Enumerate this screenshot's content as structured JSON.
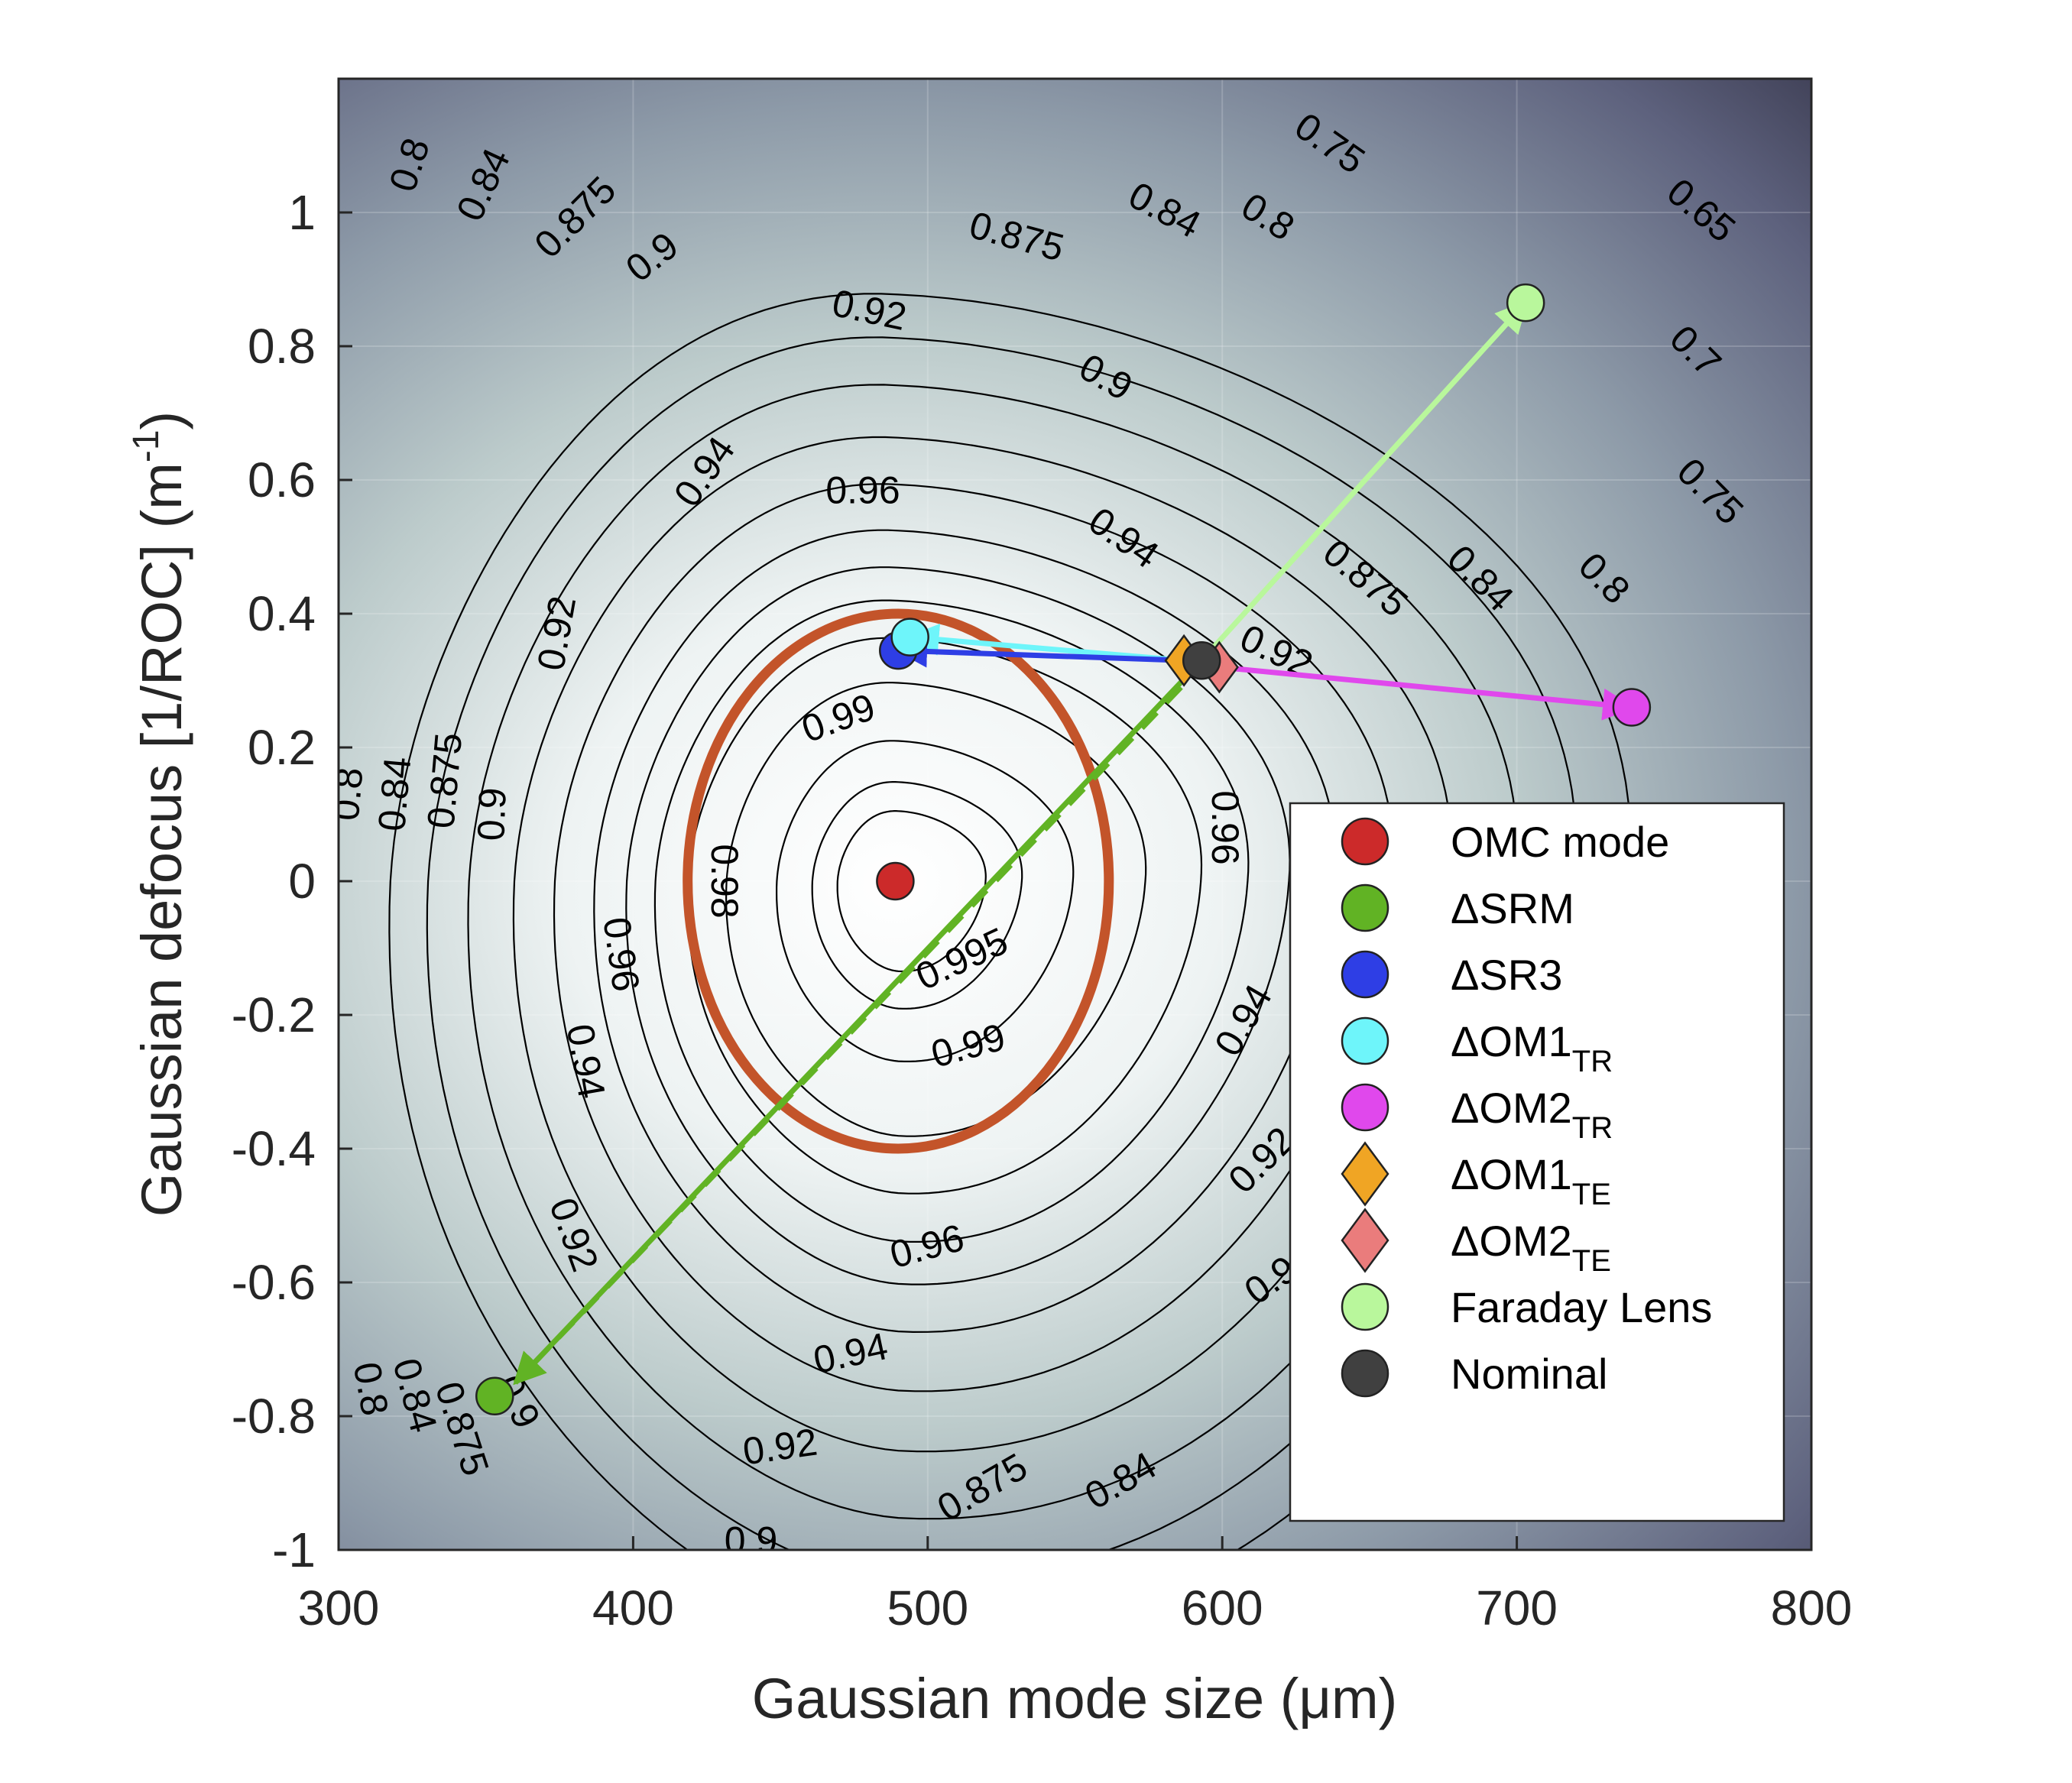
{
  "chart_data": {
    "type": "contour",
    "xlabel": "Gaussian mode size (μm)",
    "ylabel_main": "Gaussian defocus [1/ROC] (m",
    "ylabel_sup": "-1",
    "ylabel_tail": ")",
    "xlim": [
      300,
      800
    ],
    "ylim": [
      -1,
      1.2
    ],
    "xticks": [
      "300",
      "400",
      "500",
      "600",
      "700",
      "800"
    ],
    "xtick_values": [
      300,
      400,
      500,
      600,
      700,
      800
    ],
    "yticks": [
      "1",
      "0.8",
      "0.6",
      "0.4",
      "0.2",
      "0",
      "-0.2",
      "-0.4",
      "-0.6",
      "-0.8",
      "-1"
    ],
    "ytick_values": [
      1,
      0.8,
      0.6,
      0.4,
      0.2,
      0,
      -0.2,
      -0.4,
      -0.6,
      -0.8,
      -1
    ],
    "grid": true,
    "contour_center": [
      490,
      0
    ],
    "contour_levels": [
      0.65,
      0.7,
      0.75,
      0.8,
      0.84,
      0.875,
      0.9,
      0.92,
      0.94,
      0.96,
      0.98,
      0.99,
      0.995
    ],
    "contour_labels": [
      {
        "text": "0.8",
        "x": 325,
        "y": 1.07,
        "rot": -72
      },
      {
        "text": "0.84",
        "x": 350,
        "y": 1.04,
        "rot": -65
      },
      {
        "text": "0.875",
        "x": 381,
        "y": 0.99,
        "rot": -45
      },
      {
        "text": "0.9",
        "x": 407,
        "y": 0.93,
        "rot": -38
      },
      {
        "text": "0.92",
        "x": 480,
        "y": 0.85,
        "rot": 12
      },
      {
        "text": "0.875",
        "x": 530,
        "y": 0.96,
        "rot": 15
      },
      {
        "text": "0.84",
        "x": 580,
        "y": 1.0,
        "rot": 28
      },
      {
        "text": "0.8",
        "x": 615,
        "y": 0.99,
        "rot": 32
      },
      {
        "text": "0.75",
        "x": 636,
        "y": 1.1,
        "rot": 35
      },
      {
        "text": "0.65",
        "x": 762,
        "y": 1.0,
        "rot": 40
      },
      {
        "text": "0.7",
        "x": 760,
        "y": 0.79,
        "rot": 45
      },
      {
        "text": "0.75",
        "x": 765,
        "y": 0.58,
        "rot": 45
      },
      {
        "text": "0.9",
        "x": 560,
        "y": 0.75,
        "rot": 30
      },
      {
        "text": "0.94",
        "x": 425,
        "y": 0.61,
        "rot": -55
      },
      {
        "text": "0.96",
        "x": 478,
        "y": 0.58,
        "rot": 0
      },
      {
        "text": "0.94",
        "x": 566,
        "y": 0.51,
        "rot": 35
      },
      {
        "text": "0.875",
        "x": 648,
        "y": 0.45,
        "rot": 40
      },
      {
        "text": "0.84",
        "x": 687,
        "y": 0.45,
        "rot": 45
      },
      {
        "text": "0.8",
        "x": 729,
        "y": 0.45,
        "rot": 45
      },
      {
        "text": "0.92",
        "x": 375,
        "y": 0.37,
        "rot": -80
      },
      {
        "text": "0.92",
        "x": 618,
        "y": 0.34,
        "rot": 25
      },
      {
        "text": "0.99",
        "x": 470,
        "y": 0.24,
        "rot": -20
      },
      {
        "text": "0.8",
        "x": 304,
        "y": 0.13,
        "rot": -85
      },
      {
        "text": "0.84",
        "x": 320,
        "y": 0.13,
        "rot": -85
      },
      {
        "text": "0.875",
        "x": 337,
        "y": 0.15,
        "rot": -85
      },
      {
        "text": "0.9",
        "x": 353,
        "y": 0.1,
        "rot": -88
      },
      {
        "text": "0.96",
        "x": 600,
        "y": 0.08,
        "rot": 90
      },
      {
        "text": "0.98",
        "x": 430,
        "y": 0.0,
        "rot": 90
      },
      {
        "text": "0.995",
        "x": 512,
        "y": -0.12,
        "rot": -25
      },
      {
        "text": "0.96",
        "x": 395,
        "y": -0.11,
        "rot": 82
      },
      {
        "text": "0.94",
        "x": 383,
        "y": -0.27,
        "rot": 80
      },
      {
        "text": "0.99",
        "x": 514,
        "y": -0.25,
        "rot": -15
      },
      {
        "text": "0.92",
        "x": 379,
        "y": -0.53,
        "rot": 70
      },
      {
        "text": "0.96",
        "x": 500,
        "y": -0.55,
        "rot": -15
      },
      {
        "text": "0.94",
        "x": 474,
        "y": -0.71,
        "rot": -12
      },
      {
        "text": "0.92",
        "x": 450,
        "y": -0.85,
        "rot": -8
      },
      {
        "text": "0.9",
        "x": 440,
        "y": -0.99,
        "rot": 0
      },
      {
        "text": "0.875",
        "x": 519,
        "y": -0.91,
        "rot": -30
      },
      {
        "text": "0.84",
        "x": 566,
        "y": -0.9,
        "rot": -30
      },
      {
        "text": "0.9",
        "x": 617,
        "y": -0.6,
        "rot": -35
      },
      {
        "text": "0.92",
        "x": 614,
        "y": -0.42,
        "rot": -45
      },
      {
        "text": "0.94",
        "x": 608,
        "y": -0.21,
        "rot": -60
      },
      {
        "text": "0.8",
        "x": 310,
        "y": -0.76,
        "rot": 80
      },
      {
        "text": "0.84",
        "x": 325,
        "y": -0.77,
        "rot": 75
      },
      {
        "text": "0.875",
        "x": 341,
        "y": -0.82,
        "rot": 72
      },
      {
        "text": "0.9",
        "x": 360,
        "y": -0.78,
        "rot": 65
      }
    ],
    "fit_ellipse": {
      "cx": 490,
      "cy": 0,
      "rx": 71.5,
      "ry": 0.4,
      "color": "#c3542a"
    },
    "points": [
      {
        "name": "OMC mode",
        "x": 489,
        "y": 0.0,
        "marker": "circle",
        "color": "#cc2a2a"
      },
      {
        "name": "ΔSRM",
        "x": 353,
        "y": -0.77,
        "marker": "circle",
        "color": "#61b324"
      },
      {
        "name": "ΔSR3",
        "x": 490,
        "y": 0.345,
        "marker": "circle",
        "color": "#2e3ee5"
      },
      {
        "name": "ΔOM1_TR",
        "x": 494,
        "y": 0.365,
        "marker": "circle",
        "color": "#6ef5fa"
      },
      {
        "name": "ΔOM2_TR",
        "x": 739,
        "y": 0.26,
        "marker": "circle",
        "color": "#e048ec"
      },
      {
        "name": "ΔOM1_TE",
        "x": 587,
        "y": 0.33,
        "marker": "diamond",
        "color": "#f0a524"
      },
      {
        "name": "ΔOM2_TE",
        "x": 599,
        "y": 0.32,
        "marker": "diamond",
        "color": "#ea7c7c"
      },
      {
        "name": "Faraday Lens",
        "x": 703,
        "y": 0.865,
        "marker": "circle",
        "color": "#b9f79c"
      },
      {
        "name": "Nominal",
        "x": 593,
        "y": 0.33,
        "marker": "circle",
        "color": "#404040"
      }
    ],
    "arrows": [
      {
        "from": [
          593,
          0.33
        ],
        "to": [
          703,
          0.865
        ],
        "color": "#b9f79c",
        "style": "solid"
      },
      {
        "from": [
          587,
          0.33
        ],
        "to": [
          494,
          0.365
        ],
        "color": "#6ef5fa",
        "style": "solid"
      },
      {
        "from": [
          587,
          0.33
        ],
        "to": [
          490,
          0.345
        ],
        "color": "#2e3ee5",
        "style": "solid"
      },
      {
        "from": [
          599,
          0.32
        ],
        "to": [
          739,
          0.26
        ],
        "color": "#e048ec",
        "style": "solid"
      },
      {
        "from": [
          593,
          0.33
        ],
        "to": [
          360,
          -0.75
        ],
        "color": "#61b324",
        "style": "solid"
      },
      {
        "from": [
          586,
          0.29
        ],
        "to": [
          360,
          -0.75
        ],
        "color": "#61b324",
        "style": "dashed"
      }
    ],
    "legend": {
      "placement": "bottom-right",
      "entries": [
        {
          "label": "OMC mode",
          "sub": "",
          "marker": "circle",
          "color": "#cc2a2a"
        },
        {
          "label": "ΔSRM",
          "sub": "",
          "marker": "circle",
          "color": "#61b324"
        },
        {
          "label": "ΔSR3",
          "sub": "",
          "marker": "circle",
          "color": "#2e3ee5"
        },
        {
          "label": "ΔOM1",
          "sub": "TR",
          "marker": "circle",
          "color": "#6ef5fa"
        },
        {
          "label": "ΔOM2",
          "sub": "TR",
          "marker": "circle",
          "color": "#e048ec"
        },
        {
          "label": "ΔOM1",
          "sub": "TE",
          "marker": "diamond",
          "color": "#f0a524"
        },
        {
          "label": "ΔOM2",
          "sub": "TE",
          "marker": "diamond",
          "color": "#ea7c7c"
        },
        {
          "label": "Faraday Lens",
          "sub": "",
          "marker": "circle",
          "color": "#b9f79c"
        },
        {
          "label": "Nominal",
          "sub": "",
          "marker": "circle",
          "color": "#404040"
        }
      ]
    }
  }
}
